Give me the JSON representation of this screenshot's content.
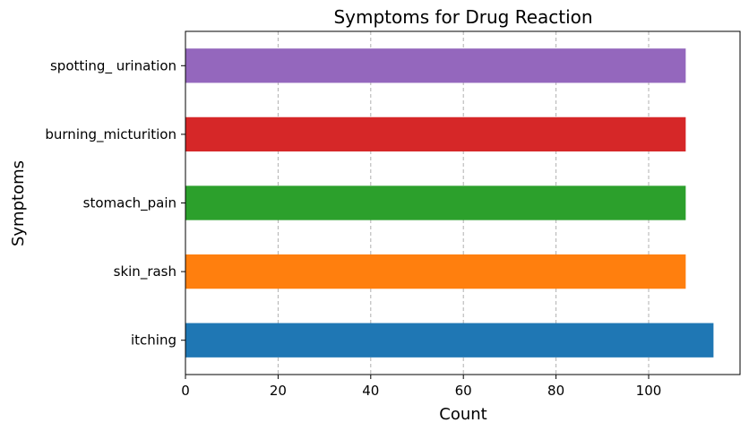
{
  "chart_data": {
    "type": "bar",
    "orientation": "horizontal",
    "title": "Symptoms for Drug Reaction",
    "xlabel": "Count",
    "ylabel": "Symptoms",
    "xlim": [
      0,
      120
    ],
    "xticks": [
      0,
      20,
      40,
      60,
      80,
      100
    ],
    "grid": "vertical dashed",
    "categories": [
      "itching",
      "skin_rash",
      "stomach_pain",
      "burning_micturition",
      "spotting_ urination"
    ],
    "values": [
      114,
      108,
      108,
      108,
      108
    ],
    "colors": [
      "#1f77b4",
      "#ff7f0e",
      "#2ca02c",
      "#d62728",
      "#9467bd"
    ]
  }
}
